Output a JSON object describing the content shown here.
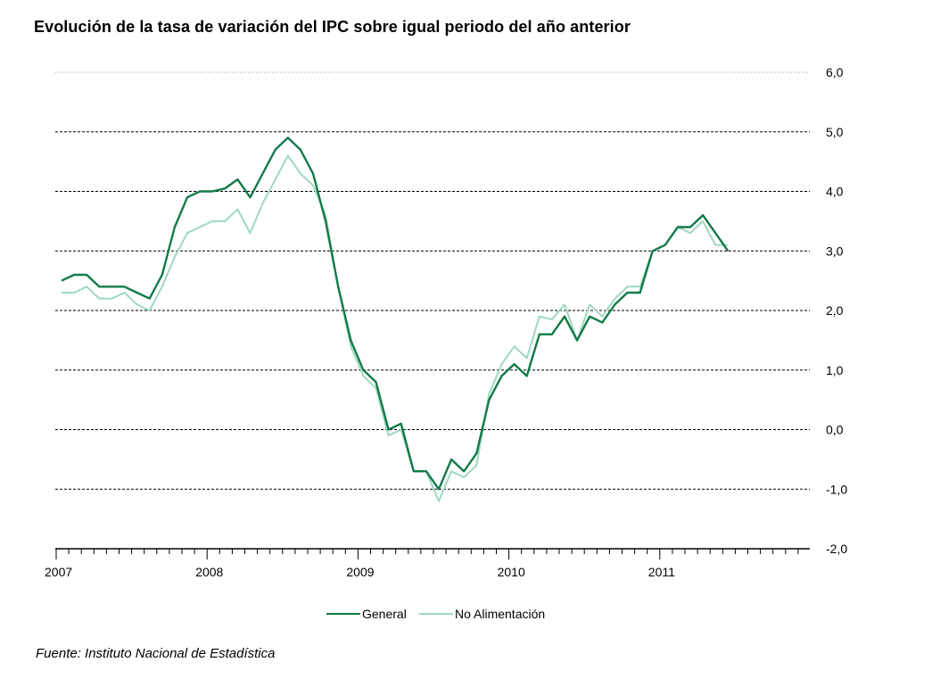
{
  "title": "Evolución de la tasa de variación del IPC sobre igual  periodo del año anterior",
  "source": "Fuente: Instituto Nacional de Estadística",
  "chart_data": {
    "type": "line",
    "title": "Evolución de la tasa de variación del IPC sobre igual  periodo del año anterior",
    "x_start": "2007-01",
    "x_frequency": "monthly",
    "x_tick_labels": [
      "2007",
      "2008",
      "2009",
      "2010",
      "2011"
    ],
    "y_tick_labels": [
      "6,0",
      "5,0",
      "4,0",
      "3,0",
      "2,0",
      "1,0",
      "0,0",
      "-1,0",
      "-2,0"
    ],
    "ylim": [
      -2,
      6
    ],
    "grid": true,
    "legend_position": "bottom",
    "series": [
      {
        "name": "General",
        "color": "#127a48",
        "values": [
          2.5,
          2.6,
          2.6,
          2.4,
          2.4,
          2.4,
          2.3,
          2.2,
          2.6,
          3.4,
          3.9,
          4.0,
          4.0,
          4.05,
          4.2,
          3.9,
          4.3,
          4.7,
          4.9,
          4.7,
          4.3,
          3.5,
          2.4,
          1.5,
          1.0,
          0.8,
          0.0,
          0.1,
          -0.7,
          -0.7,
          -1.0,
          -0.5,
          -0.7,
          -0.4,
          0.5,
          0.9,
          1.1,
          0.9,
          1.6,
          1.6,
          1.9,
          1.5,
          1.9,
          1.8,
          2.1,
          2.3,
          2.3,
          3.0,
          3.1,
          3.4,
          3.4,
          3.6,
          3.3,
          3.0
        ]
      },
      {
        "name": "No Alimentación",
        "color": "#9fd8bf",
        "values": [
          2.3,
          2.3,
          2.4,
          2.2,
          2.2,
          2.3,
          2.1,
          2.0,
          2.4,
          2.9,
          3.3,
          3.4,
          3.5,
          3.5,
          3.7,
          3.3,
          3.8,
          4.2,
          4.6,
          4.3,
          4.1,
          3.6,
          2.4,
          1.4,
          0.9,
          0.7,
          -0.1,
          0.0,
          -0.7,
          -0.7,
          -1.2,
          -0.7,
          -0.8,
          -0.6,
          0.6,
          1.1,
          1.4,
          1.2,
          1.9,
          1.85,
          2.1,
          1.5,
          2.1,
          1.9,
          2.2,
          2.4,
          2.4,
          3.0,
          3.1,
          3.4,
          3.3,
          3.5,
          3.1,
          3.1
        ]
      }
    ]
  }
}
